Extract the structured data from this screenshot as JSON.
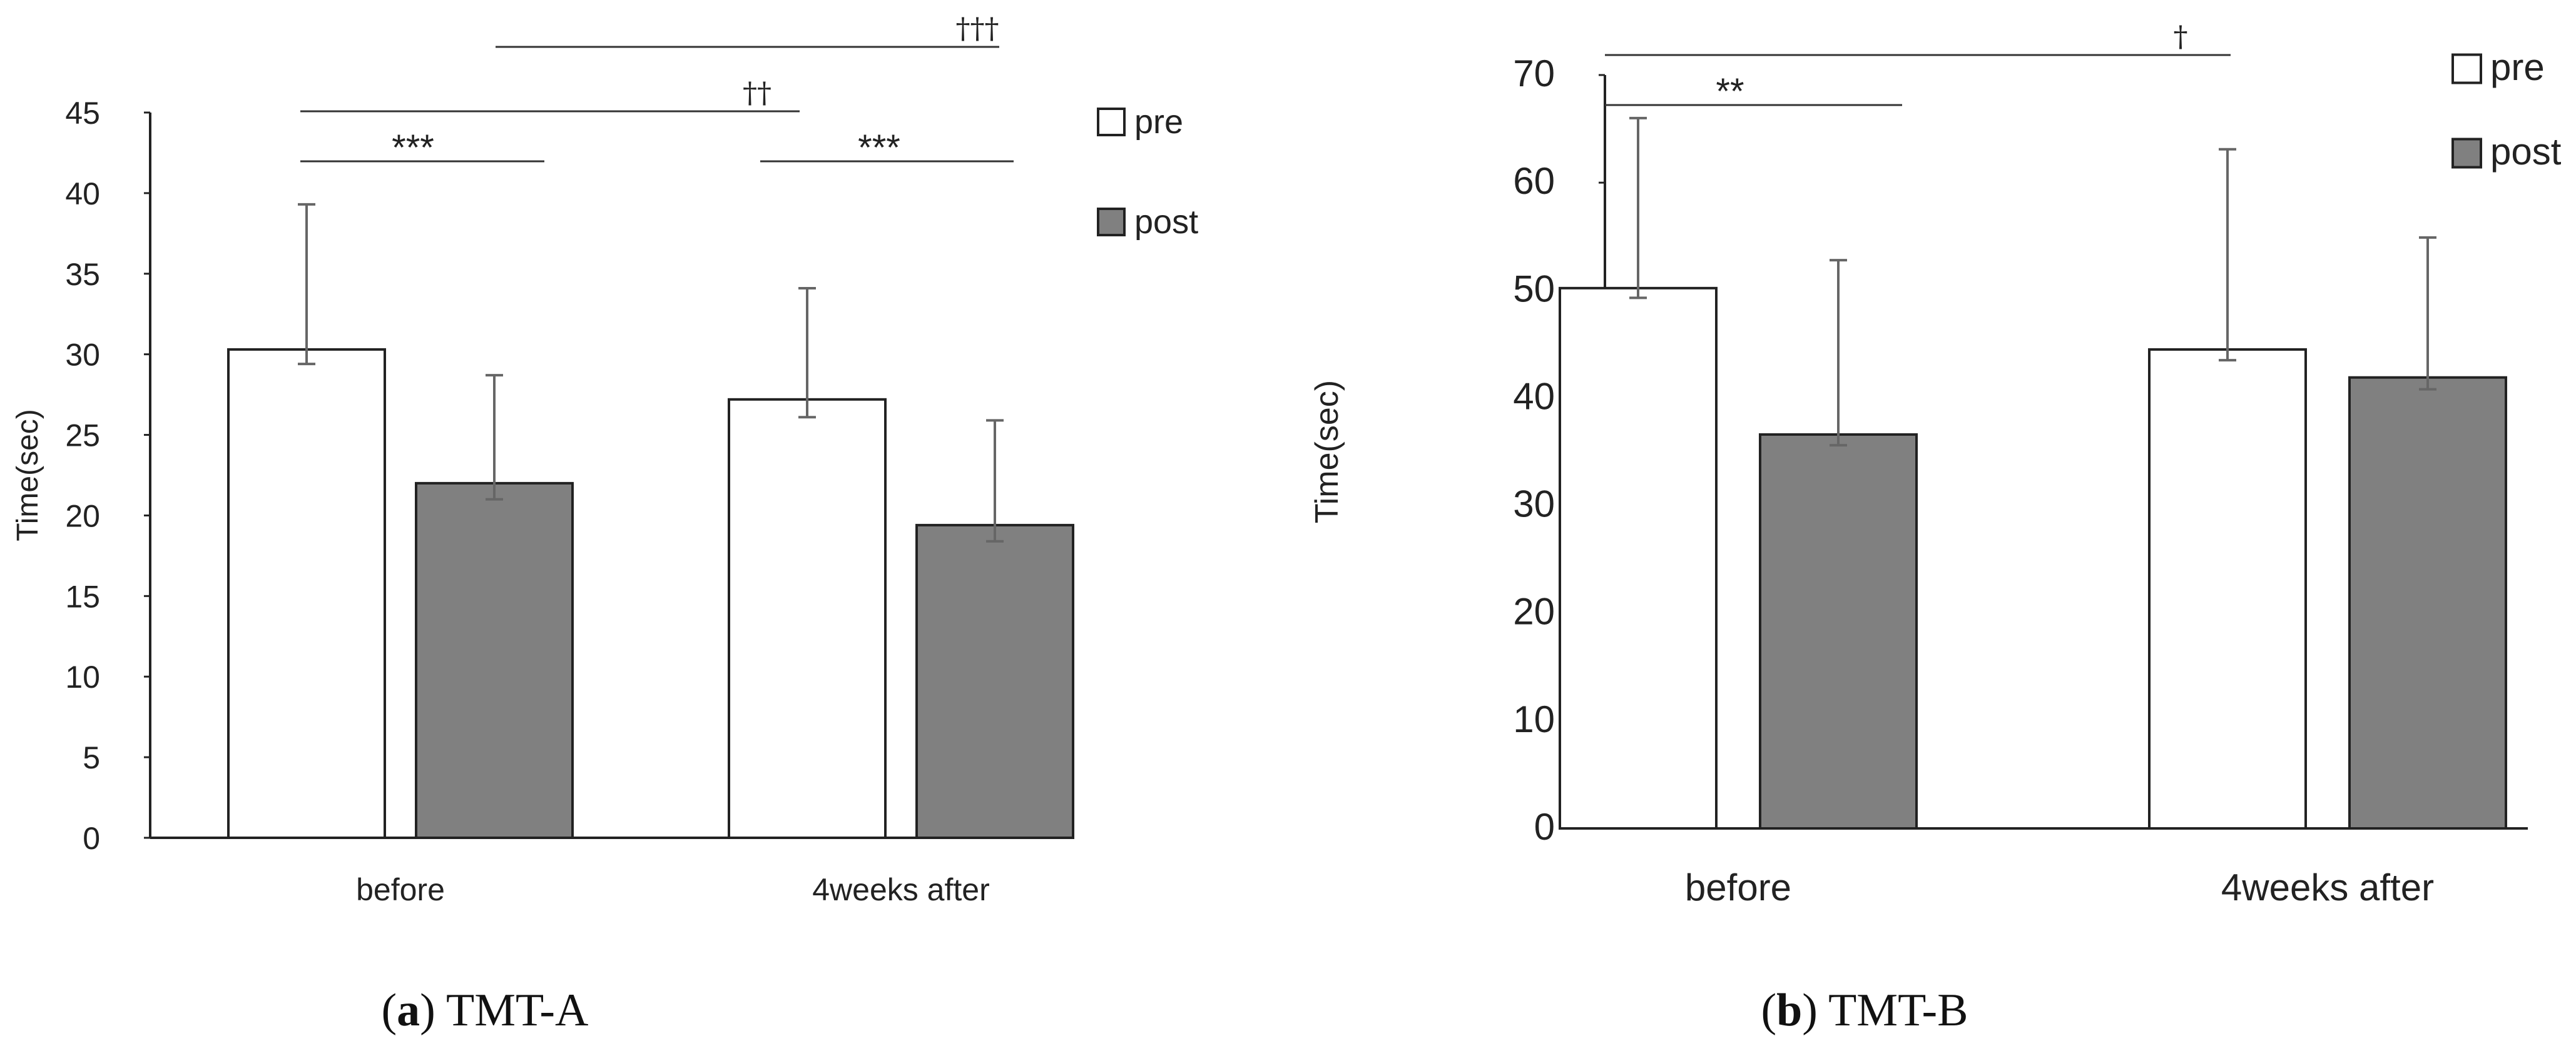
{
  "chart_data": [
    {
      "id": "a",
      "type": "bar",
      "title": "",
      "caption_letter": "a",
      "caption_text": " TMT-A",
      "ylabel": "Time(sec)",
      "xlabel": "",
      "ylim": [
        0,
        45
      ],
      "yticks": [
        0,
        5,
        10,
        15,
        20,
        25,
        30,
        35,
        40,
        45
      ],
      "categories": [
        "before",
        "4weeks after"
      ],
      "series": [
        {
          "name": "pre",
          "values": [
            30.3,
            27.2
          ],
          "error_lower": [
            29.4,
            26.1
          ],
          "error_upper": [
            39.3,
            34.1
          ],
          "color": "#ffffff"
        },
        {
          "name": "post",
          "values": [
            22.0,
            19.4
          ],
          "error_lower": [
            21.0,
            18.4
          ],
          "error_upper": [
            28.7,
            25.9
          ],
          "color": "#808080"
        }
      ],
      "significance": [
        {
          "label": "***",
          "kind": "star"
        },
        {
          "label": "***",
          "kind": "star"
        },
        {
          "label": "††",
          "kind": "dagger"
        },
        {
          "label": "†††",
          "kind": "dagger"
        }
      ]
    },
    {
      "id": "b",
      "type": "bar",
      "title": "",
      "caption_letter": "b",
      "caption_text": " TMT-B",
      "ylabel": "Time(sec)",
      "xlabel": "",
      "ylim": [
        0,
        70
      ],
      "yticks": [
        0,
        10,
        20,
        30,
        40,
        50,
        60,
        70
      ],
      "categories": [
        "before",
        "4weeks after"
      ],
      "series": [
        {
          "name": "pre",
          "values": [
            50.2,
            44.5
          ],
          "error_lower": [
            49.3,
            43.5
          ],
          "error_upper": [
            66.0,
            63.1
          ],
          "color": "#ffffff"
        },
        {
          "name": "post",
          "values": [
            36.6,
            41.9
          ],
          "error_lower": [
            35.6,
            40.8
          ],
          "error_upper": [
            52.8,
            54.9
          ],
          "color": "#808080"
        }
      ],
      "significance": [
        {
          "label": "**",
          "kind": "star"
        },
        {
          "label": "†",
          "kind": "dagger"
        }
      ]
    }
  ]
}
